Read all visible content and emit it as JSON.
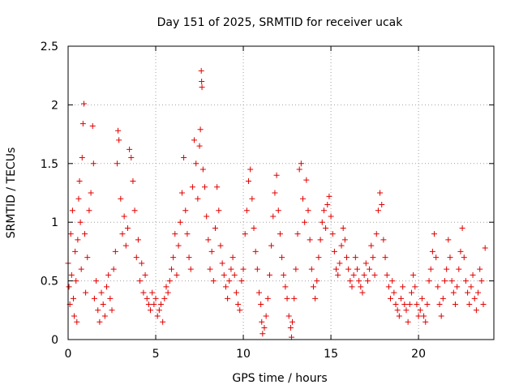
{
  "chart_data": {
    "type": "scatter",
    "title": "Day 151 of 2025, SRMTID for receiver ucak",
    "xlabel": "GPS time / hours",
    "ylabel": "SRMTID / TECUs",
    "xlim": [
      0,
      24.3
    ],
    "ylim": [
      0,
      2.5
    ],
    "xticks": [
      0,
      5,
      10,
      15,
      20
    ],
    "yticks": [
      0,
      0.5,
      1,
      1.5,
      2,
      2.5
    ],
    "grid": true,
    "marker": "+",
    "color": "#e00000",
    "series": [
      {
        "name": "SRMTID",
        "points": [
          [
            0.0,
            0.65
          ],
          [
            0.05,
            0.45
          ],
          [
            0.1,
            0.3
          ],
          [
            0.15,
            0.9
          ],
          [
            0.2,
            0.55
          ],
          [
            0.25,
            1.1
          ],
          [
            0.3,
            0.35
          ],
          [
            0.35,
            0.2
          ],
          [
            0.4,
            0.75
          ],
          [
            0.45,
            0.5
          ],
          [
            0.5,
            0.15
          ],
          [
            0.55,
            0.85
          ],
          [
            0.6,
            1.2
          ],
          [
            0.65,
            1.35
          ],
          [
            0.7,
            1.0
          ],
          [
            0.75,
            0.6
          ],
          [
            0.8,
            1.55
          ],
          [
            0.85,
            1.84
          ],
          [
            0.9,
            2.01
          ],
          [
            0.95,
            0.9
          ],
          [
            1.0,
            0.4
          ],
          [
            1.1,
            0.7
          ],
          [
            1.2,
            1.1
          ],
          [
            1.3,
            1.25
          ],
          [
            1.4,
            1.82
          ],
          [
            1.45,
            1.5
          ],
          [
            1.5,
            0.35
          ],
          [
            1.6,
            0.5
          ],
          [
            1.7,
            0.25
          ],
          [
            1.8,
            0.15
          ],
          [
            1.9,
            0.4
          ],
          [
            2.0,
            0.3
          ],
          [
            2.1,
            0.2
          ],
          [
            2.2,
            0.45
          ],
          [
            2.3,
            0.55
          ],
          [
            2.4,
            0.35
          ],
          [
            2.5,
            0.25
          ],
          [
            2.6,
            0.6
          ],
          [
            2.7,
            0.75
          ],
          [
            2.8,
            1.5
          ],
          [
            2.85,
            1.78
          ],
          [
            2.9,
            1.7
          ],
          [
            3.0,
            1.2
          ],
          [
            3.1,
            0.9
          ],
          [
            3.2,
            1.05
          ],
          [
            3.3,
            0.8
          ],
          [
            3.4,
            0.95
          ],
          [
            3.5,
            1.62
          ],
          [
            3.6,
            1.55
          ],
          [
            3.7,
            1.35
          ],
          [
            3.8,
            1.1
          ],
          [
            3.9,
            0.7
          ],
          [
            4.0,
            0.85
          ],
          [
            4.1,
            0.5
          ],
          [
            4.2,
            0.65
          ],
          [
            4.3,
            0.4
          ],
          [
            4.4,
            0.55
          ],
          [
            4.5,
            0.35
          ],
          [
            4.6,
            0.3
          ],
          [
            4.7,
            0.25
          ],
          [
            4.8,
            0.4
          ],
          [
            4.9,
            0.3
          ],
          [
            5.0,
            0.35
          ],
          [
            5.1,
            0.2
          ],
          [
            5.2,
            0.25
          ],
          [
            5.3,
            0.3
          ],
          [
            5.4,
            0.15
          ],
          [
            5.5,
            0.35
          ],
          [
            5.6,
            0.45
          ],
          [
            5.7,
            0.4
          ],
          [
            5.8,
            0.5
          ],
          [
            5.9,
            0.6
          ],
          [
            6.0,
            0.7
          ],
          [
            6.1,
            0.9
          ],
          [
            6.2,
            0.55
          ],
          [
            6.3,
            0.8
          ],
          [
            6.4,
            1.0
          ],
          [
            6.5,
            1.25
          ],
          [
            6.6,
            1.55
          ],
          [
            6.7,
            1.1
          ],
          [
            6.8,
            0.9
          ],
          [
            6.9,
            0.7
          ],
          [
            7.0,
            0.6
          ],
          [
            7.1,
            1.3
          ],
          [
            7.2,
            1.7
          ],
          [
            7.3,
            1.5
          ],
          [
            7.4,
            1.2
          ],
          [
            7.5,
            1.65
          ],
          [
            7.55,
            1.79
          ],
          [
            7.6,
            2.29
          ],
          [
            7.62,
            2.2
          ],
          [
            7.64,
            2.15
          ],
          [
            7.7,
            1.45
          ],
          [
            7.8,
            1.3
          ],
          [
            7.9,
            1.05
          ],
          [
            8.0,
            0.85
          ],
          [
            8.1,
            0.6
          ],
          [
            8.2,
            0.75
          ],
          [
            8.3,
            0.5
          ],
          [
            8.4,
            0.95
          ],
          [
            8.5,
            1.3
          ],
          [
            8.6,
            1.1
          ],
          [
            8.7,
            0.8
          ],
          [
            8.8,
            0.65
          ],
          [
            8.9,
            0.55
          ],
          [
            9.0,
            0.45
          ],
          [
            9.1,
            0.35
          ],
          [
            9.2,
            0.5
          ],
          [
            9.3,
            0.6
          ],
          [
            9.4,
            0.7
          ],
          [
            9.5,
            0.55
          ],
          [
            9.6,
            0.4
          ],
          [
            9.7,
            0.3
          ],
          [
            9.8,
            0.25
          ],
          [
            9.9,
            0.5
          ],
          [
            10.0,
            0.6
          ],
          [
            10.1,
            0.9
          ],
          [
            10.2,
            1.1
          ],
          [
            10.3,
            1.35
          ],
          [
            10.4,
            1.45
          ],
          [
            10.5,
            1.2
          ],
          [
            10.6,
            0.95
          ],
          [
            10.7,
            0.75
          ],
          [
            10.8,
            0.6
          ],
          [
            10.9,
            0.4
          ],
          [
            11.0,
            0.3
          ],
          [
            11.05,
            0.15
          ],
          [
            11.1,
            0.05
          ],
          [
            11.2,
            0.1
          ],
          [
            11.3,
            0.2
          ],
          [
            11.4,
            0.35
          ],
          [
            11.5,
            0.55
          ],
          [
            11.6,
            0.8
          ],
          [
            11.7,
            1.05
          ],
          [
            11.8,
            1.25
          ],
          [
            11.9,
            1.4
          ],
          [
            12.0,
            1.1
          ],
          [
            12.1,
            0.9
          ],
          [
            12.2,
            0.7
          ],
          [
            12.3,
            0.55
          ],
          [
            12.4,
            0.45
          ],
          [
            12.5,
            0.35
          ],
          [
            12.6,
            0.2
          ],
          [
            12.7,
            0.1
          ],
          [
            12.75,
            0.02
          ],
          [
            12.8,
            0.15
          ],
          [
            12.9,
            0.35
          ],
          [
            13.0,
            0.6
          ],
          [
            13.1,
            0.9
          ],
          [
            13.2,
            1.45
          ],
          [
            13.3,
            1.5
          ],
          [
            13.4,
            1.2
          ],
          [
            13.5,
            1.0
          ],
          [
            13.6,
            1.36
          ],
          [
            13.7,
            1.1
          ],
          [
            13.8,
            0.85
          ],
          [
            13.9,
            0.6
          ],
          [
            14.0,
            0.45
          ],
          [
            14.1,
            0.35
          ],
          [
            14.2,
            0.5
          ],
          [
            14.3,
            0.7
          ],
          [
            14.4,
            0.85
          ],
          [
            14.5,
            1.0
          ],
          [
            14.6,
            1.1
          ],
          [
            14.7,
            0.95
          ],
          [
            14.8,
            1.15
          ],
          [
            14.9,
            1.22
          ],
          [
            15.0,
            1.05
          ],
          [
            15.1,
            0.9
          ],
          [
            15.2,
            0.75
          ],
          [
            15.3,
            0.6
          ],
          [
            15.4,
            0.55
          ],
          [
            15.5,
            0.65
          ],
          [
            15.6,
            0.8
          ],
          [
            15.7,
            0.95
          ],
          [
            15.8,
            0.85
          ],
          [
            15.9,
            0.7
          ],
          [
            16.0,
            0.6
          ],
          [
            16.1,
            0.5
          ],
          [
            16.2,
            0.45
          ],
          [
            16.3,
            0.55
          ],
          [
            16.4,
            0.7
          ],
          [
            16.5,
            0.6
          ],
          [
            16.6,
            0.5
          ],
          [
            16.7,
            0.45
          ],
          [
            16.8,
            0.4
          ],
          [
            16.9,
            0.55
          ],
          [
            17.0,
            0.65
          ],
          [
            17.1,
            0.5
          ],
          [
            17.2,
            0.6
          ],
          [
            17.3,
            0.8
          ],
          [
            17.4,
            0.7
          ],
          [
            17.5,
            0.55
          ],
          [
            17.6,
            0.9
          ],
          [
            17.7,
            1.1
          ],
          [
            17.8,
            1.25
          ],
          [
            17.9,
            1.15
          ],
          [
            18.0,
            0.85
          ],
          [
            18.1,
            0.7
          ],
          [
            18.2,
            0.55
          ],
          [
            18.3,
            0.45
          ],
          [
            18.4,
            0.35
          ],
          [
            18.5,
            0.5
          ],
          [
            18.6,
            0.4
          ],
          [
            18.7,
            0.3
          ],
          [
            18.8,
            0.25
          ],
          [
            18.9,
            0.2
          ],
          [
            19.0,
            0.35
          ],
          [
            19.1,
            0.45
          ],
          [
            19.2,
            0.3
          ],
          [
            19.3,
            0.25
          ],
          [
            19.4,
            0.15
          ],
          [
            19.5,
            0.3
          ],
          [
            19.6,
            0.4
          ],
          [
            19.7,
            0.55
          ],
          [
            19.8,
            0.45
          ],
          [
            19.9,
            0.3
          ],
          [
            20.0,
            0.2
          ],
          [
            20.1,
            0.25
          ],
          [
            20.2,
            0.35
          ],
          [
            20.3,
            0.2
          ],
          [
            20.4,
            0.15
          ],
          [
            20.5,
            0.3
          ],
          [
            20.6,
            0.5
          ],
          [
            20.7,
            0.6
          ],
          [
            20.8,
            0.75
          ],
          [
            20.9,
            0.9
          ],
          [
            21.0,
            0.7
          ],
          [
            21.1,
            0.45
          ],
          [
            21.2,
            0.3
          ],
          [
            21.3,
            0.2
          ],
          [
            21.4,
            0.35
          ],
          [
            21.5,
            0.5
          ],
          [
            21.6,
            0.6
          ],
          [
            21.7,
            0.85
          ],
          [
            21.8,
            0.7
          ],
          [
            21.9,
            0.5
          ],
          [
            22.0,
            0.4
          ],
          [
            22.1,
            0.3
          ],
          [
            22.2,
            0.45
          ],
          [
            22.3,
            0.6
          ],
          [
            22.4,
            0.75
          ],
          [
            22.5,
            0.95
          ],
          [
            22.6,
            0.7
          ],
          [
            22.7,
            0.5
          ],
          [
            22.8,
            0.4
          ],
          [
            22.9,
            0.3
          ],
          [
            23.0,
            0.45
          ],
          [
            23.1,
            0.55
          ],
          [
            23.2,
            0.35
          ],
          [
            23.3,
            0.25
          ],
          [
            23.4,
            0.4
          ],
          [
            23.5,
            0.6
          ],
          [
            23.6,
            0.5
          ],
          [
            23.7,
            0.3
          ],
          [
            23.8,
            0.78
          ]
        ]
      }
    ]
  }
}
